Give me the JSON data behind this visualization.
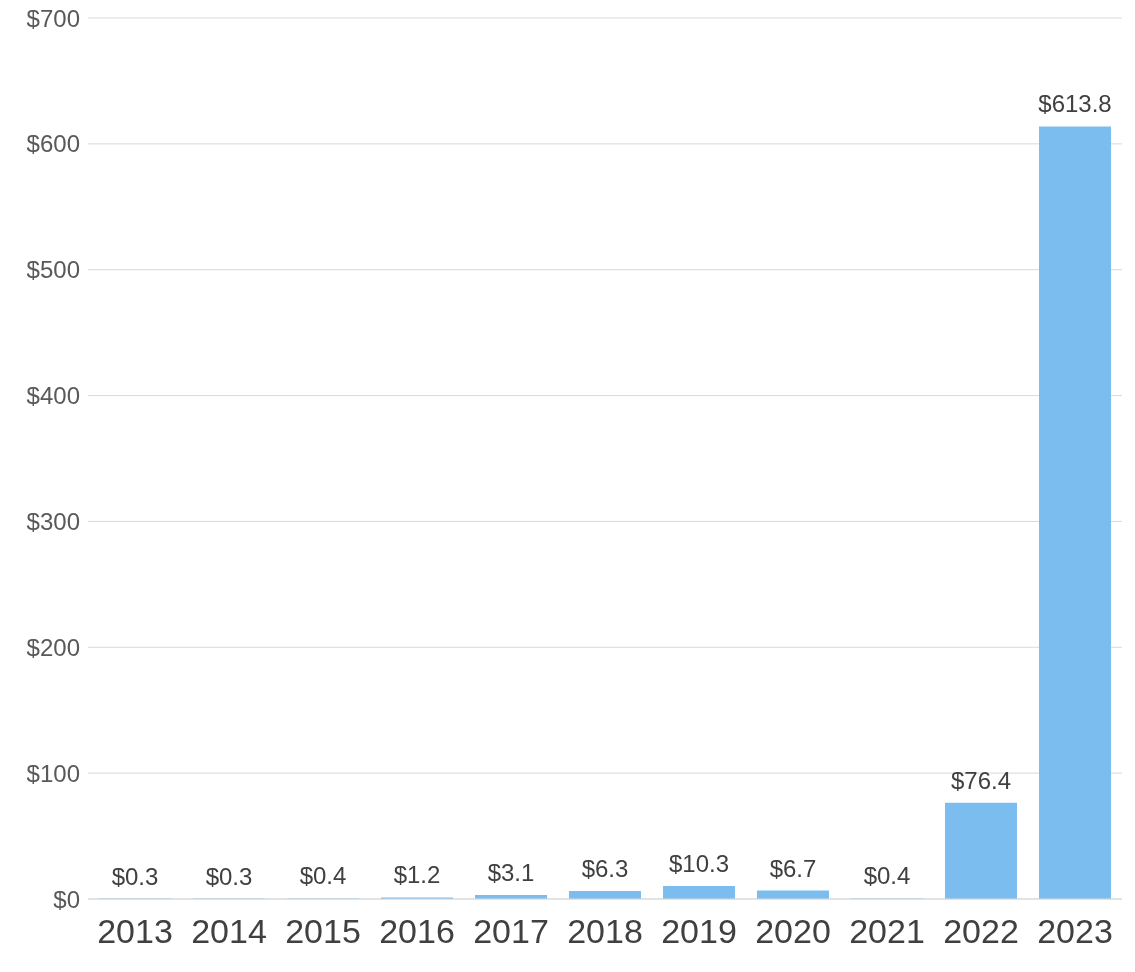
{
  "chart_data": {
    "type": "bar",
    "categories": [
      "2013",
      "2014",
      "2015",
      "2016",
      "2017",
      "2018",
      "2019",
      "2020",
      "2021",
      "2022",
      "2023"
    ],
    "values": [
      0.3,
      0.3,
      0.4,
      1.2,
      3.1,
      6.3,
      10.3,
      6.7,
      0.4,
      76.4,
      613.8
    ],
    "value_labels": [
      "$0.3",
      "$0.3",
      "$0.4",
      "$1.2",
      "$3.1",
      "$6.3",
      "$10.3",
      "$6.7",
      "$0.4",
      "$76.4",
      "$613.8"
    ],
    "color": "#7bbdee",
    "ylim": [
      0,
      700
    ],
    "yticks": [
      {
        "value": 0,
        "label": "$0"
      },
      {
        "value": 100,
        "label": "$100"
      },
      {
        "value": 200,
        "label": "$200"
      },
      {
        "value": 300,
        "label": "$300"
      },
      {
        "value": 400,
        "label": "$400"
      },
      {
        "value": 500,
        "label": "$500"
      },
      {
        "value": 600,
        "label": "$600"
      },
      {
        "value": 700,
        "label": "$700"
      }
    ],
    "grid": "y",
    "legend": false
  }
}
